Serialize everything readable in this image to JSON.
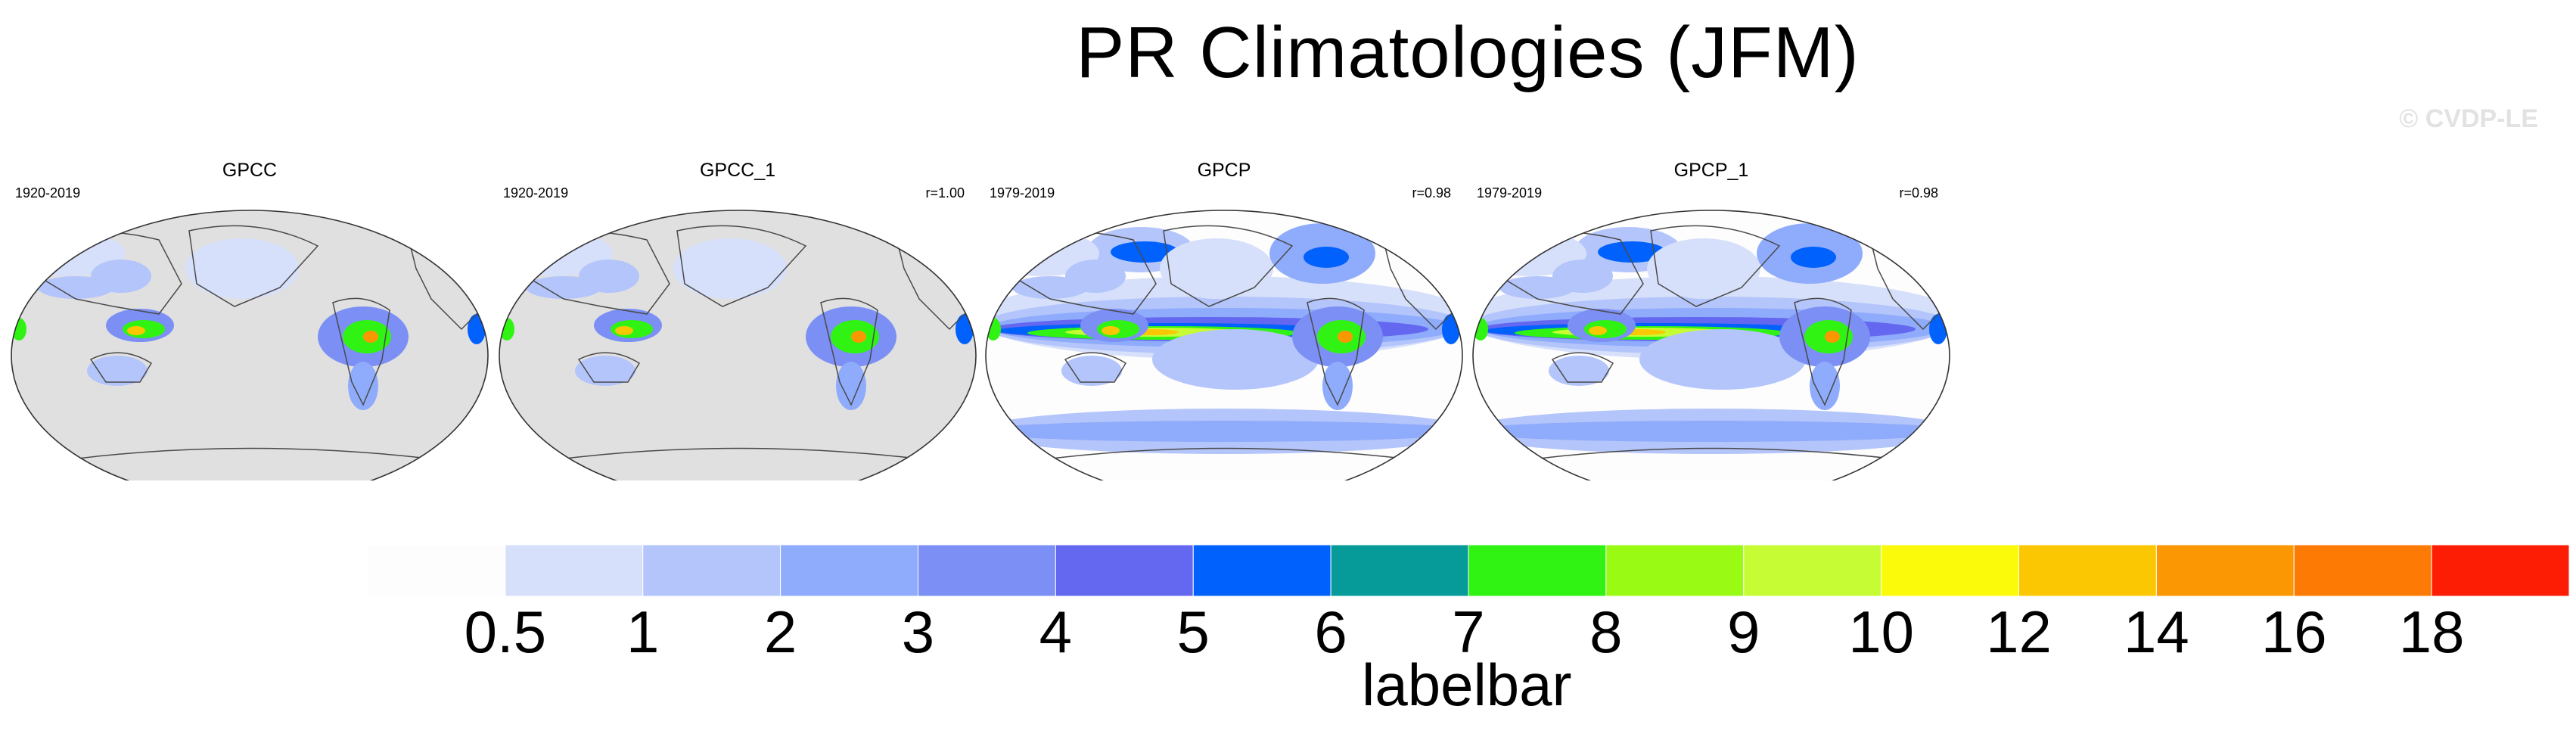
{
  "title": "PR Climatologies (JFM)",
  "copyright": "© CVDP-LE",
  "panels": [
    {
      "name": "GPCC",
      "period": "1920-2019",
      "r": "",
      "coverage": "land"
    },
    {
      "name": "GPCC_1",
      "period": "1920-2019",
      "r": "r=1.00",
      "coverage": "land"
    },
    {
      "name": "GPCP",
      "period": "1979-2019",
      "r": "r=0.98",
      "coverage": "global"
    },
    {
      "name": "GPCP_1",
      "period": "1979-2019",
      "r": "r=0.98",
      "coverage": "global"
    }
  ],
  "labelbar": {
    "title": "labelbar",
    "tick_labels": [
      "0.5",
      "1",
      "2",
      "3",
      "4",
      "5",
      "6",
      "7",
      "8",
      "9",
      "10",
      "12",
      "14",
      "16",
      "18"
    ],
    "colors": [
      "#fdfdfd",
      "#d7e0fa",
      "#b4c5fb",
      "#8fabfb",
      "#7b8ff5",
      "#6467f0",
      "#0061fc",
      "#069a98",
      "#31f313",
      "#99fa14",
      "#c6fc33",
      "#fbfa0a",
      "#fbc702",
      "#fc9704",
      "#fd7a04",
      "#fd1d04"
    ]
  },
  "colors": {
    "ocean_missing": "#e0e0e0",
    "coast": "#4a4a4a"
  }
}
